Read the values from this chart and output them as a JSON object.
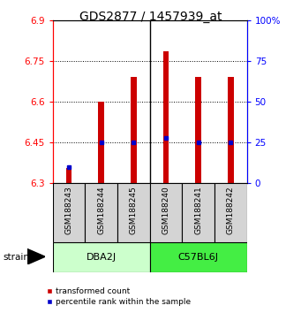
{
  "title": "GDS2877 / 1457939_at",
  "samples": [
    "GSM188243",
    "GSM188244",
    "GSM188245",
    "GSM188240",
    "GSM188241",
    "GSM188242"
  ],
  "group_labels": [
    "DBA2J",
    "C57BL6J"
  ],
  "group_color_dba": "#ccffcc",
  "group_color_c57": "#44ee44",
  "transformed_counts": [
    6.355,
    6.6,
    6.69,
    6.785,
    6.69,
    6.69
  ],
  "percentile_ranks": [
    10,
    25,
    25,
    28,
    25,
    25
  ],
  "y_min": 6.3,
  "y_max": 6.9,
  "y_ticks": [
    6.3,
    6.45,
    6.6,
    6.75,
    6.9
  ],
  "y_tick_labels": [
    "6.3",
    "6.45",
    "6.6",
    "6.75",
    "6.9"
  ],
  "right_y_ticks": [
    0,
    25,
    50,
    75,
    100
  ],
  "right_y_tick_labels": [
    "0",
    "25",
    "50",
    "75",
    "100%"
  ],
  "bar_color": "#cc0000",
  "dot_color": "#0000cc",
  "bar_bottom": 6.3,
  "title_fontsize": 10,
  "tick_fontsize": 7.5,
  "sample_fontsize": 6.5,
  "group_fontsize": 8,
  "legend_fontsize": 6.5
}
